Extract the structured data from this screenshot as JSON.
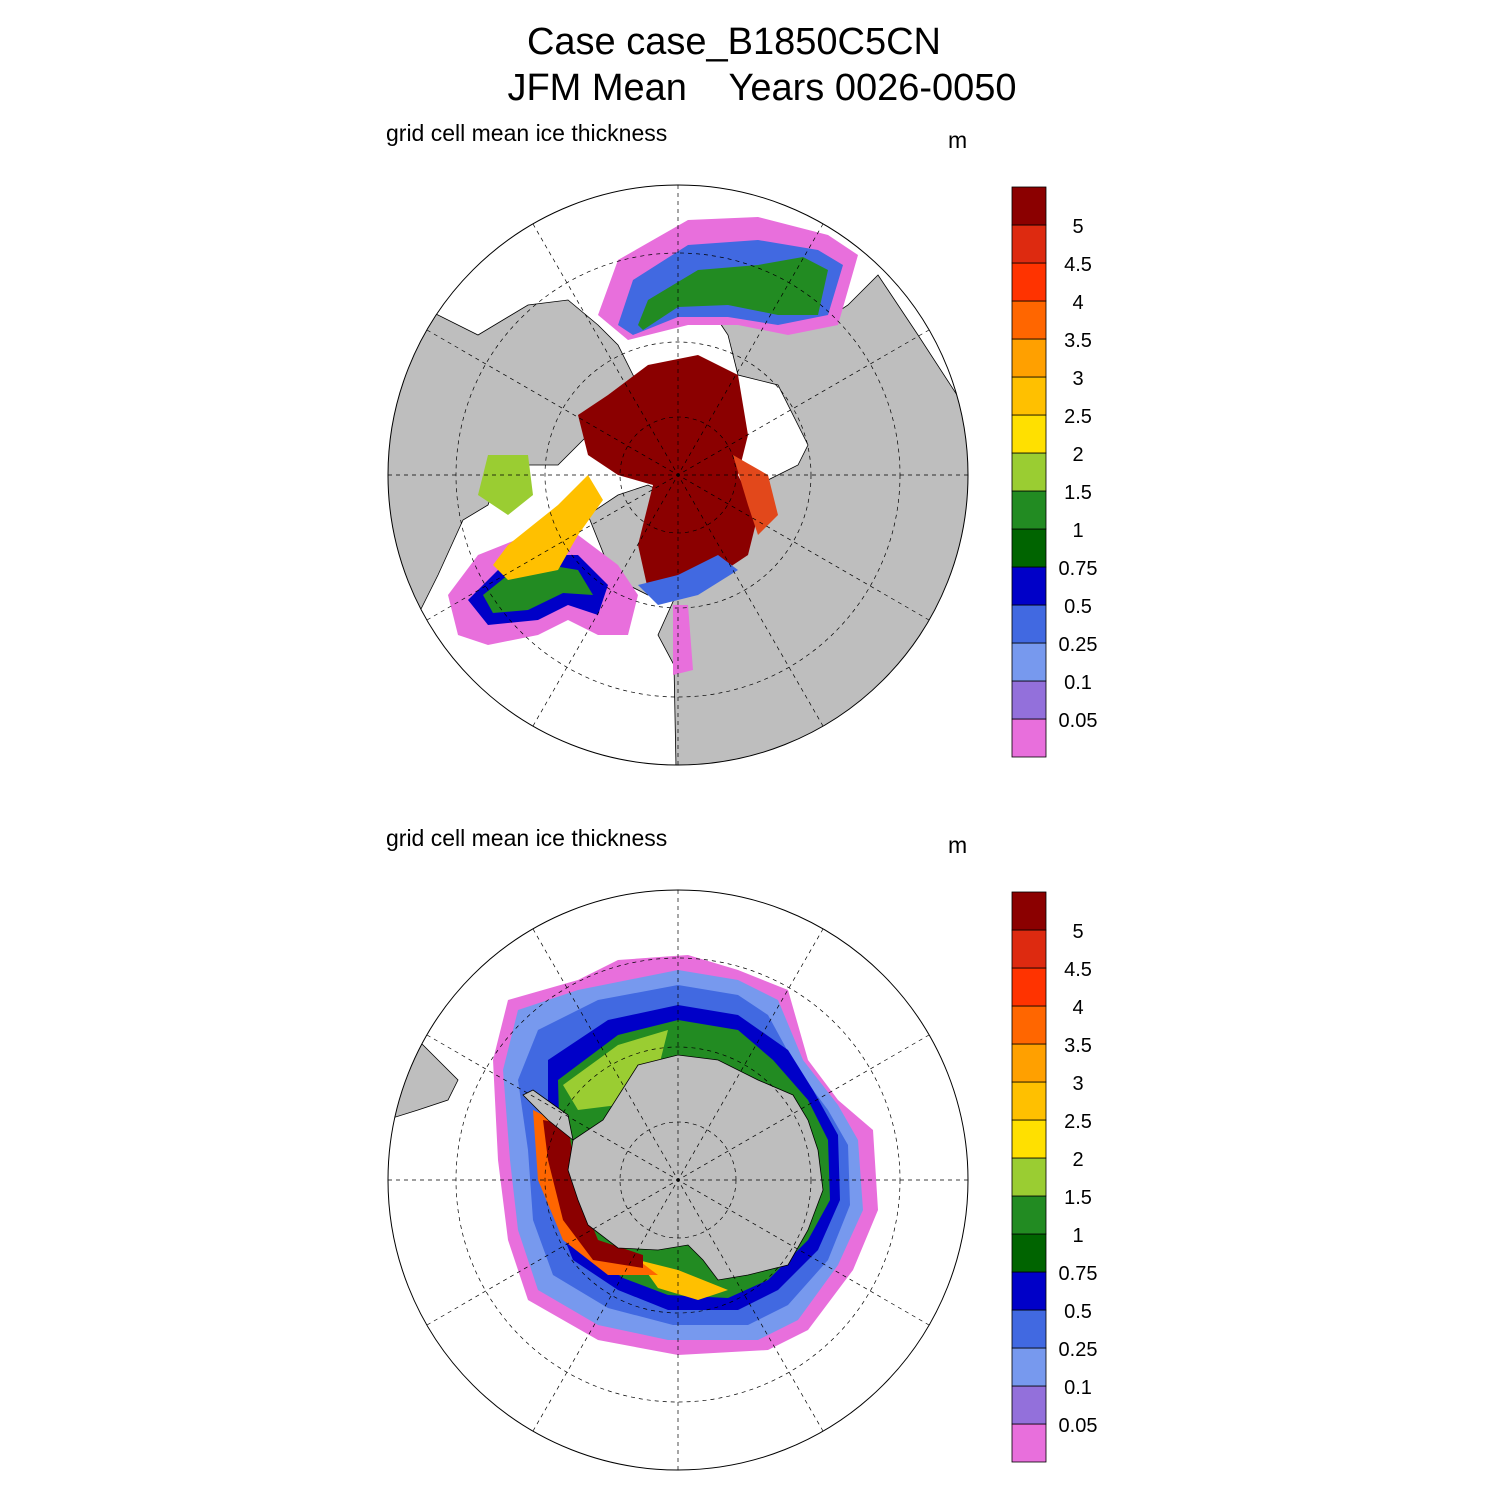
{
  "title": {
    "line1": "Case case_B1850C5CN",
    "line2": "JFM Mean    Years 0026-0050"
  },
  "panels": [
    {
      "name": "Northern Hemisphere",
      "variable": "grid cell mean ice thickness",
      "units": "m"
    },
    {
      "name": "Southern Hemisphere",
      "variable": "grid cell mean ice thickness",
      "units": "m"
    }
  ],
  "colorbar": {
    "labels": [
      "0.05",
      "0.1",
      "0.25",
      "0.5",
      "0.75",
      "1",
      "1.5",
      "2",
      "2.5",
      "3",
      "3.5",
      "4",
      "4.5",
      "5"
    ],
    "colors": [
      "#e86fdc",
      "#9370db",
      "#7799ee",
      "#4169e1",
      "#0000c8",
      "#006400",
      "#228b22",
      "#9acd32",
      "#ffe000",
      "#ffc000",
      "#ffa000",
      "#ff6600",
      "#ff3300",
      "#dd2a10",
      "#8b0000"
    ]
  },
  "colors": {
    "land": "#bebebe",
    "background": "#ffffff"
  },
  "chart_data": [
    {
      "type": "heatmap",
      "title": "grid cell mean ice thickness",
      "units": "m",
      "projection": "north polar stereographic",
      "color_levels": [
        0.05,
        0.1,
        0.25,
        0.5,
        0.75,
        1,
        1.5,
        2,
        2.5,
        3,
        3.5,
        4,
        4.5,
        5
      ]
    },
    {
      "type": "heatmap",
      "title": "grid cell mean ice thickness",
      "units": "m",
      "projection": "south polar stereographic",
      "color_levels": [
        0.05,
        0.1,
        0.25,
        0.5,
        0.75,
        1,
        1.5,
        2,
        2.5,
        3,
        3.5,
        4,
        4.5,
        5
      ]
    }
  ]
}
